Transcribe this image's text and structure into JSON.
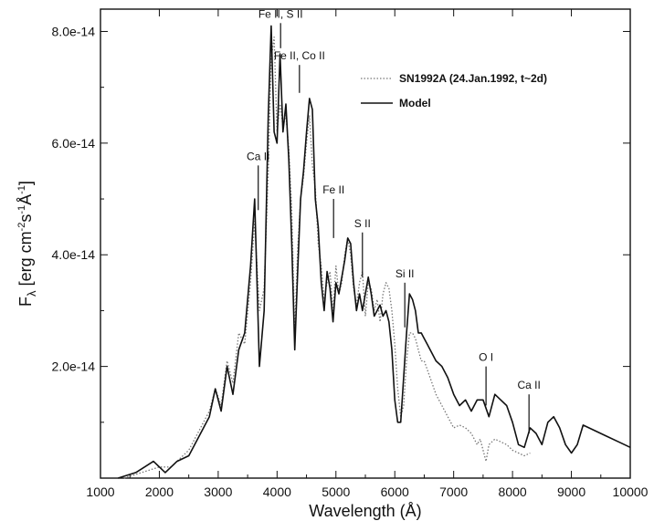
{
  "chart_data": {
    "type": "line",
    "title": "",
    "xlabel": "Wavelength (Å)",
    "ylabel": "Fλ [erg cm⁻² s⁻¹ Å⁻¹]",
    "ylabel_base": "F",
    "ylabel_sub": "λ",
    "ylabel_rest": " [erg cm",
    "ylabel_sup1": "-2",
    "ylabel_mid": "s",
    "ylabel_sup2": "-1",
    "ylabel_mid2": "Å",
    "ylabel_sup3": "-1",
    "ylabel_end": "]",
    "xlim": [
      1000,
      10000
    ],
    "ylim": [
      0,
      8.4e-14
    ],
    "x_ticks": [
      1000,
      2000,
      3000,
      4000,
      5000,
      6000,
      7000,
      8000,
      9000,
      10000
    ],
    "x_tick_labels": [
      "1000",
      "2000",
      "3000",
      "4000",
      "5000",
      "6000",
      "7000",
      "8000",
      "9000",
      "10000"
    ],
    "y_ticks": [
      2e-14,
      4e-14,
      6e-14,
      8e-14
    ],
    "y_tick_labels": [
      "2.0e-14",
      "4.0e-14",
      "6.0e-14",
      "8.0e-14"
    ],
    "grid": false,
    "legend_position": "top-right",
    "series": [
      {
        "name": "SN1992A (24.Jan.1992, t~2d)",
        "style": "dotted",
        "color": "#777777",
        "x": [
          1400,
          1700,
          2000,
          2200,
          2500,
          2700,
          2850,
          2950,
          3050,
          3150,
          3250,
          3350,
          3450,
          3550,
          3620,
          3700,
          3780,
          3850,
          3900,
          3950,
          4000,
          4050,
          4100,
          4150,
          4200,
          4250,
          4300,
          4350,
          4400,
          4450,
          4500,
          4550,
          4600,
          4650,
          4700,
          4750,
          4800,
          4850,
          4900,
          4950,
          5000,
          5050,
          5100,
          5150,
          5200,
          5250,
          5300,
          5350,
          5400,
          5450,
          5500,
          5550,
          5600,
          5650,
          5700,
          5750,
          5800,
          5850,
          5900,
          5950,
          6000,
          6050,
          6100,
          6150,
          6200,
          6250,
          6300,
          6350,
          6400,
          6450,
          6500,
          6600,
          6700,
          6800,
          6900,
          7000,
          7100,
          7200,
          7300,
          7400,
          7450,
          7500,
          7550,
          7600,
          7700,
          7800,
          7900,
          8000,
          8100,
          8200,
          8300
        ],
        "y": [
          0.0,
          1e-15,
          2e-15,
          2e-15,
          5e-15,
          9e-15,
          1.2e-14,
          1.6e-14,
          1.3e-14,
          2.1e-14,
          1.7e-14,
          2.6e-14,
          2.4e-14,
          3.5e-14,
          4.6e-14,
          3e-14,
          3.4e-14,
          5.5e-14,
          7.5e-14,
          7.9e-14,
          6.2e-14,
          6.7e-14,
          6.3e-14,
          6.5e-14,
          5.9e-14,
          4.8e-14,
          2.6e-14,
          4.1e-14,
          5e-14,
          5.4e-14,
          6e-14,
          6.5e-14,
          5.6e-14,
          5.2e-14,
          4.2e-14,
          3.8e-14,
          3.2e-14,
          3.5e-14,
          3.7e-14,
          3e-14,
          3.8e-14,
          3.3e-14,
          3.5e-14,
          4e-14,
          4.3e-14,
          4e-14,
          3.4e-14,
          3.1e-14,
          3.5e-14,
          3.7e-14,
          2.9e-14,
          3.5e-14,
          3.4e-14,
          3e-14,
          3.2e-14,
          2.8e-14,
          3.3e-14,
          3.5e-14,
          3.4e-14,
          3e-14,
          2.4e-14,
          1.6e-14,
          1.1e-14,
          1.3e-14,
          2.1e-14,
          2.6e-14,
          2.6e-14,
          2.5e-14,
          2.3e-14,
          2.1e-14,
          2.1e-14,
          1.8e-14,
          1.5e-14,
          1.3e-14,
          1.1e-14,
          9e-15,
          9.5e-15,
          9e-15,
          8e-15,
          6e-15,
          7e-15,
          5e-15,
          3e-15,
          6e-15,
          7e-15,
          6.5e-15,
          6e-15,
          5e-15,
          4.5e-15,
          4e-15,
          4.5e-15
        ]
      },
      {
        "name": "Model",
        "style": "solid",
        "color": "#111111",
        "x": [
          1300,
          1600,
          1900,
          2100,
          2300,
          2500,
          2700,
          2850,
          2950,
          3050,
          3150,
          3250,
          3350,
          3450,
          3550,
          3620,
          3700,
          3780,
          3850,
          3900,
          3950,
          4000,
          4050,
          4100,
          4150,
          4200,
          4250,
          4300,
          4350,
          4400,
          4450,
          4500,
          4550,
          4600,
          4650,
          4700,
          4750,
          4800,
          4850,
          4900,
          4950,
          5000,
          5050,
          5100,
          5150,
          5200,
          5250,
          5300,
          5350,
          5400,
          5450,
          5500,
          5550,
          5600,
          5650,
          5700,
          5750,
          5800,
          5850,
          5900,
          5950,
          6000,
          6050,
          6100,
          6150,
          6200,
          6250,
          6300,
          6350,
          6400,
          6450,
          6500,
          6550,
          6600,
          6700,
          6800,
          6900,
          7000,
          7100,
          7200,
          7300,
          7400,
          7500,
          7600,
          7700,
          7800,
          7900,
          8000,
          8100,
          8200,
          8300,
          8400,
          8500,
          8600,
          8700,
          8800,
          8900,
          9000,
          9100,
          9200,
          9400,
          9600,
          9800,
          10000
        ],
        "y": [
          0.0,
          1e-15,
          3e-15,
          1e-15,
          3e-15,
          4e-15,
          8e-15,
          1.1e-14,
          1.6e-14,
          1.2e-14,
          2e-14,
          1.5e-14,
          2.3e-14,
          2.6e-14,
          3.8e-14,
          5e-14,
          2e-14,
          3e-14,
          6.5e-14,
          8.1e-14,
          6.2e-14,
          6e-14,
          7.6e-14,
          6.2e-14,
          6.7e-14,
          5.7e-14,
          4.2e-14,
          2.3e-14,
          3.7e-14,
          5e-14,
          5.5e-14,
          6.2e-14,
          6.8e-14,
          6.6e-14,
          5e-14,
          4.5e-14,
          3.5e-14,
          3e-14,
          3.7e-14,
          3.4e-14,
          2.8e-14,
          3.5e-14,
          3.3e-14,
          3.6e-14,
          3.9e-14,
          4.3e-14,
          4.2e-14,
          3.5e-14,
          3e-14,
          3.3e-14,
          3e-14,
          3.3e-14,
          3.6e-14,
          3.3e-14,
          2.9e-14,
          3e-14,
          3.1e-14,
          2.9e-14,
          3e-14,
          2.8e-14,
          2.3e-14,
          1.4e-14,
          1e-14,
          1e-14,
          1.8e-14,
          2.6e-14,
          3.3e-14,
          3.2e-14,
          3e-14,
          2.6e-14,
          2.6e-14,
          2.5e-14,
          2.4e-14,
          2.3e-14,
          2.1e-14,
          2e-14,
          1.8e-14,
          1.5e-14,
          1.3e-14,
          1.4e-14,
          1.2e-14,
          1.4e-14,
          1.4e-14,
          1.1e-14,
          1.5e-14,
          1.4e-14,
          1.3e-14,
          1e-14,
          6e-15,
          5.5e-15,
          9e-15,
          8e-15,
          6e-15,
          1e-14,
          1.1e-14,
          9e-15,
          6e-15,
          4.5e-15,
          6e-15,
          9.5e-15,
          8.5e-15,
          7.5e-15,
          6.5e-15,
          5.5e-15
        ]
      }
    ],
    "annotations": [
      {
        "text": "Ca II",
        "x": 3680,
        "line_y": [
          4.8e-14,
          5.6e-14
        ]
      },
      {
        "text": "Fe II, S II",
        "x": 4060,
        "line_y": [
          7.7e-14,
          8.15e-14
        ]
      },
      {
        "text": "Fe II, Co II",
        "x": 4380,
        "line_y": [
          6.9e-14,
          7.4e-14
        ]
      },
      {
        "text": "Fe II",
        "x": 4960,
        "line_y": [
          4.3e-14,
          5e-14
        ]
      },
      {
        "text": "S II",
        "x": 5450,
        "line_y": [
          3.6e-14,
          4.4e-14
        ]
      },
      {
        "text": "Si II",
        "x": 6170,
        "line_y": [
          2.7e-14,
          3.5e-14
        ]
      },
      {
        "text": "O I",
        "x": 7550,
        "line_y": [
          1.3e-14,
          2e-14
        ]
      },
      {
        "text": "Ca II",
        "x": 8280,
        "line_y": [
          8e-15,
          1.5e-14
        ]
      }
    ]
  }
}
